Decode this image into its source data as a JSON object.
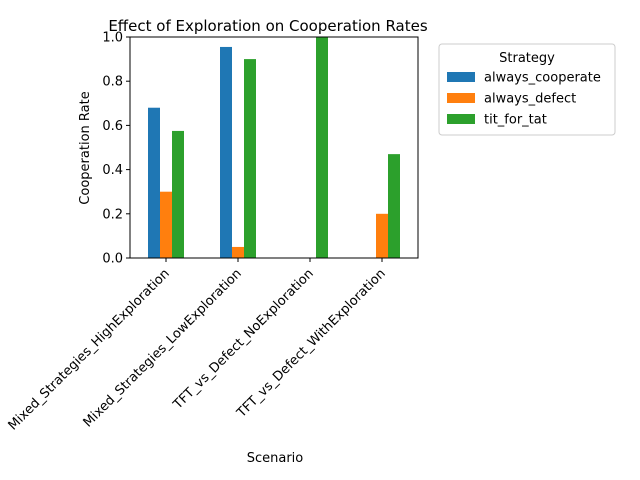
{
  "chart_data": {
    "type": "bar",
    "title": "Effect of Exploration on Cooperation Rates",
    "xlabel": "Scenario",
    "ylabel": "Cooperation Rate",
    "ylim": [
      0,
      1
    ],
    "yticks": [
      "0.0",
      "0.2",
      "0.4",
      "0.6",
      "0.8",
      "1.0"
    ],
    "categories": [
      "Mixed_Strategies_HighExploration",
      "Mixed_Strategies_LowExploration",
      "TFT_vs_Defect_NoExploration",
      "TFT_vs_Defect_WithExploration"
    ],
    "series": [
      {
        "name": "always_cooperate",
        "color": "#1f77b4",
        "values": [
          0.68,
          0.955,
          0,
          0
        ]
      },
      {
        "name": "always_defect",
        "color": "#ff7f0e",
        "values": [
          0.3,
          0.05,
          0,
          0.2
        ]
      },
      {
        "name": "tit_for_tat",
        "color": "#2ca02c",
        "values": [
          0.575,
          0.9,
          1.0,
          0.47
        ]
      }
    ],
    "legend": {
      "title": "Strategy",
      "placement": "outside-right"
    },
    "grid": false
  }
}
